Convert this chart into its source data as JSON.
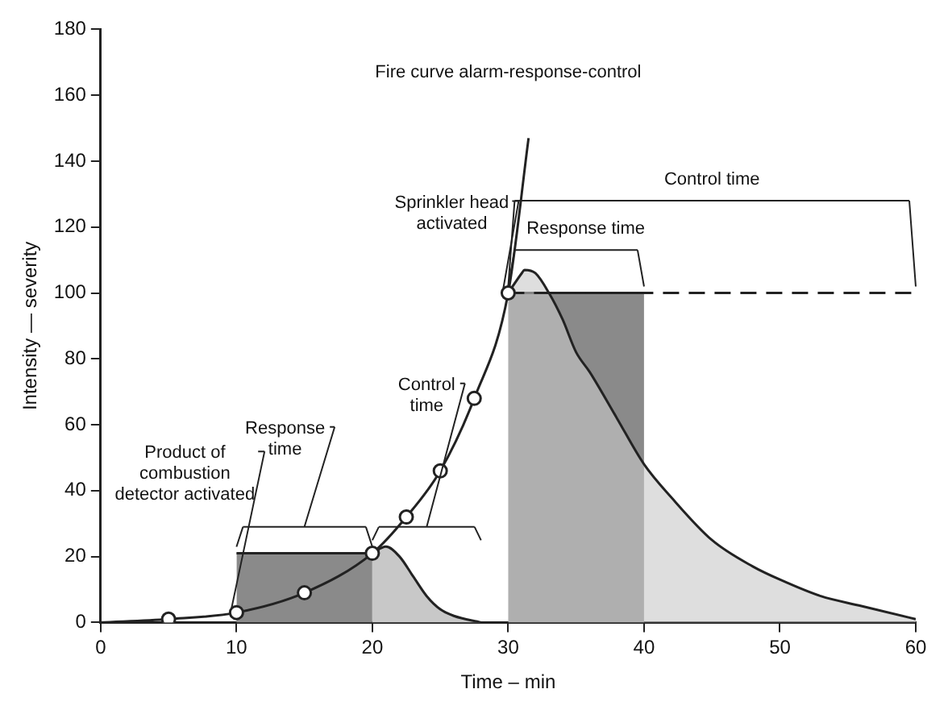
{
  "chart_data": {
    "type": "line",
    "title": "Fire curve alarm-response-control",
    "xlabel": "Time – min",
    "ylabel": "Intensity — severity",
    "xlim": [
      0,
      60
    ],
    "xticks": [
      0,
      10,
      20,
      30,
      40,
      50,
      60
    ],
    "ylim": [
      0,
      180
    ],
    "yticks": [
      0,
      20,
      40,
      60,
      80,
      100,
      120,
      140,
      160,
      180
    ],
    "grid": false,
    "legend": false,
    "series": [
      {
        "type": "area",
        "color": "#8a8a8a",
        "marker": "none",
        "x": [
          10,
          20
        ],
        "values": [
          21,
          21
        ]
      },
      {
        "type": "area",
        "color": "#c8c8c8",
        "marker": "none",
        "x": [
          20,
          21,
          22,
          23,
          24,
          25,
          26,
          28
        ],
        "values": [
          21,
          23,
          20,
          14,
          8,
          4,
          2,
          0
        ]
      },
      {
        "type": "area",
        "color": "#8a8a8a",
        "marker": "none",
        "x": [
          30,
          40
        ],
        "values": [
          100,
          100
        ]
      },
      {
        "type": "area",
        "color": "#c8c8c8",
        "marker": "none",
        "x": [
          30,
          31,
          31.2,
          32,
          33,
          34,
          35,
          36,
          38,
          40,
          42,
          45,
          48,
          50,
          53,
          56,
          60
        ],
        "values": [
          100,
          106,
          107,
          106,
          100,
          92,
          82,
          76,
          62,
          48,
          38,
          25,
          17,
          13,
          8,
          5,
          1
        ]
      },
      {
        "type": "line",
        "color": "#222222",
        "marker": "none",
        "line_style": "dashed",
        "x": [
          30,
          60
        ],
        "values": [
          100,
          100
        ]
      },
      {
        "color": "#222222",
        "marker": "none",
        "x": [
          0,
          5,
          10,
          15,
          20,
          22.5,
          25,
          27.5,
          30,
          31.5
        ],
        "values": [
          0,
          1,
          3,
          9,
          21,
          32,
          46,
          68,
          100,
          147
        ]
      },
      {
        "type": "scatter",
        "color": "#222222",
        "marker": "circle",
        "x": [
          5,
          10,
          15,
          20,
          22.5,
          25,
          27.5,
          30
        ],
        "values": [
          1,
          3,
          9,
          21,
          32,
          46,
          68,
          100
        ]
      }
    ],
    "annotations": [
      {
        "text": "Product of combustion detector activated",
        "x": 10,
        "y": 3
      },
      "Response time",
      "Control time",
      {
        "text": "Sprinkler head activated",
        "x": 30,
        "y": 100
      },
      "Response time",
      "Control time"
    ]
  }
}
